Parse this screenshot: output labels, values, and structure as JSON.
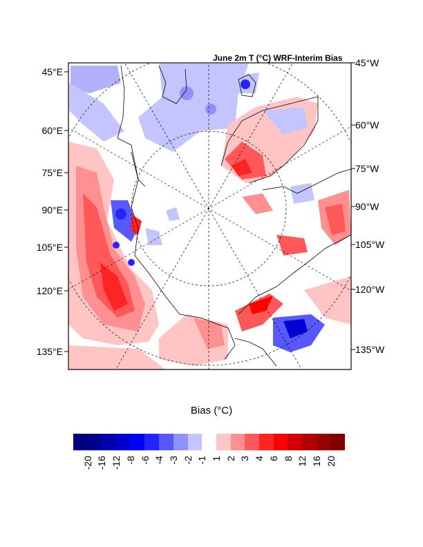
{
  "title": "June 2m T (°C) WRF-Interim Bias",
  "left_labels": [
    "45°E",
    "60°E",
    "75°E",
    "90°E",
    "105°E",
    "120°E",
    "135°E"
  ],
  "right_labels": [
    "45°W",
    "60°W",
    "75°W",
    "90°W",
    "105°W",
    "120°W",
    "135°W"
  ],
  "colorbar": {
    "title": "Bias (°C)",
    "ticks": [
      "-20",
      "-16",
      "-12",
      "-8",
      "-6",
      "-4",
      "-3",
      "-2",
      "-1",
      "1",
      "2",
      "3",
      "4",
      "6",
      "8",
      "12",
      "16",
      "20"
    ],
    "colors": [
      "#000080",
      "#00008f",
      "#0000b0",
      "#0000d0",
      "#0000ff",
      "#2424ff",
      "#5858ff",
      "#9090ff",
      "#c4c4ff",
      "#ffffff",
      "#ffc4c4",
      "#ff9090",
      "#ff5858",
      "#ff2424",
      "#ff0000",
      "#d40000",
      "#b00000",
      "#990000",
      "#800000"
    ]
  }
}
